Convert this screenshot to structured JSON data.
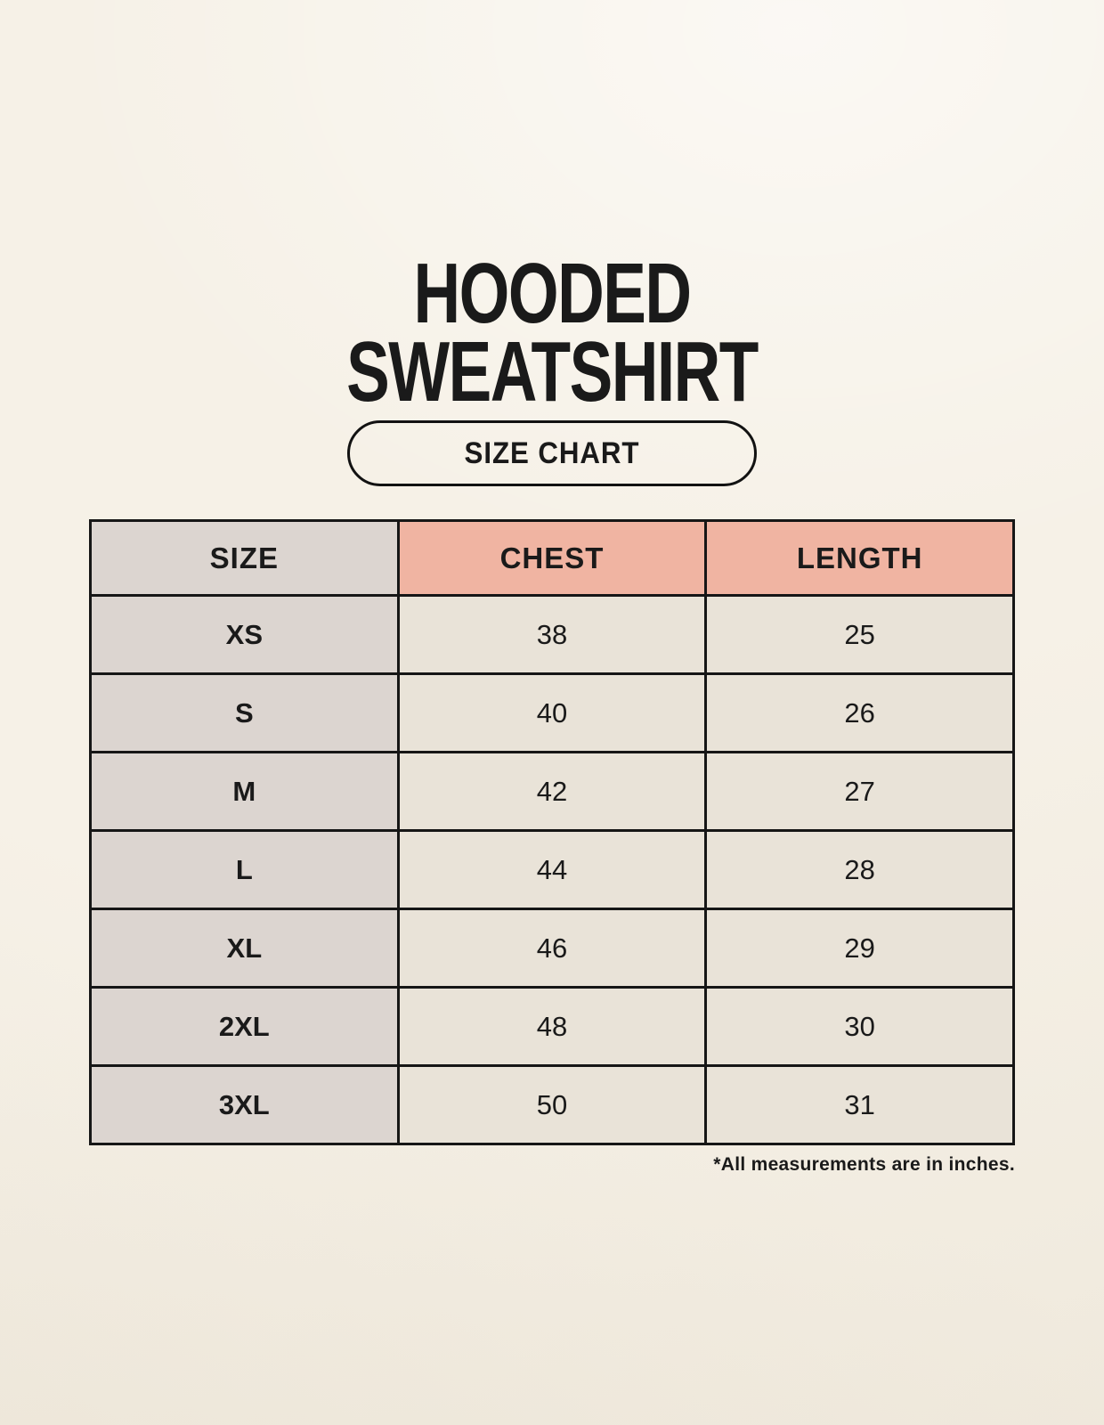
{
  "header": {
    "title_line1": "HOODED",
    "title_line2": "SWEATSHIRT",
    "badge_label": "SIZE CHART"
  },
  "size_chart": {
    "columns": [
      "SIZE",
      "CHEST",
      "LENGTH"
    ],
    "rows": [
      {
        "size": "XS",
        "chest": "38",
        "length": "25"
      },
      {
        "size": "S",
        "chest": "40",
        "length": "26"
      },
      {
        "size": "M",
        "chest": "42",
        "length": "27"
      },
      {
        "size": "L",
        "chest": "44",
        "length": "28"
      },
      {
        "size": "XL",
        "chest": "46",
        "length": "29"
      },
      {
        "size": "2XL",
        "chest": "48",
        "length": "30"
      },
      {
        "size": "3XL",
        "chest": "50",
        "length": "31"
      }
    ],
    "footnote": "*All measurements are in inches.",
    "units": "inches"
  },
  "colors": {
    "page_bg": "#f6f1e7",
    "accent_salmon": "#f0b4a2",
    "neutral_gray": "#dcd5d0",
    "cell_cream": "#e9e3d8",
    "table_border": "#161616",
    "text": "#1a1a1a"
  }
}
